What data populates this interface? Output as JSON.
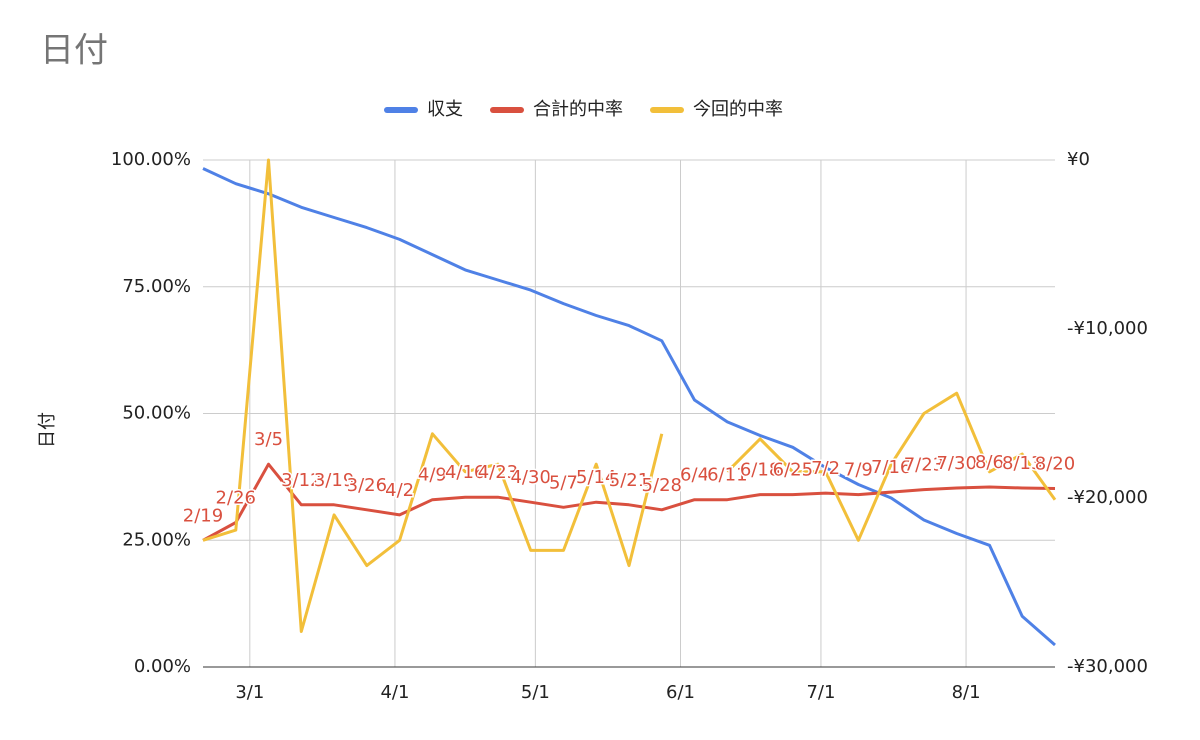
{
  "chart_data": {
    "type": "line",
    "title": "日付",
    "y_label": "日付",
    "x": [
      "2/19",
      "2/26",
      "3/5",
      "3/12",
      "3/19",
      "3/26",
      "4/2",
      "4/9",
      "4/16",
      "4/23",
      "4/30",
      "5/7",
      "5/14",
      "5/21",
      "5/28",
      "6/4",
      "6/11",
      "6/18",
      "6/25",
      "7/2",
      "7/9",
      "7/16",
      "7/23",
      "7/30",
      "8/6",
      "8/13",
      "8/20"
    ],
    "xlim": [
      "2/19",
      "8/20"
    ],
    "xticks": [
      "3/1",
      "4/1",
      "5/1",
      "6/1",
      "7/1",
      "8/1"
    ],
    "ylim": [
      0,
      100
    ],
    "yticks": [
      {
        "value": 0,
        "label": "0.00%"
      },
      {
        "value": 25,
        "label": "25.00%"
      },
      {
        "value": 50,
        "label": "50.00%"
      },
      {
        "value": 75,
        "label": "75.00%"
      },
      {
        "value": 100,
        "label": "100.00%"
      }
    ],
    "y2lim": [
      -30000,
      0
    ],
    "y2ticks": [
      {
        "value": 0,
        "label": "¥0"
      },
      {
        "value": -10000,
        "label": "-¥10,000"
      },
      {
        "value": -20000,
        "label": "-¥20,000"
      },
      {
        "value": -30000,
        "label": "-¥30,000"
      }
    ],
    "grid": true,
    "legend": "top",
    "point_labels_series": 1,
    "series": [
      {
        "name": "収支",
        "color": "#4f81e6",
        "axis": "y2",
        "values": [
          -500,
          -1400,
          -2000,
          -2800,
          -3400,
          -4000,
          -4700,
          -5600,
          -6500,
          -7100,
          -7700,
          -8500,
          -9200,
          -9800,
          -10700,
          -14200,
          -15500,
          -16300,
          -17000,
          -18200,
          -19200,
          -20000,
          -21300,
          -22100,
          -22800,
          -27000,
          -28700
        ]
      },
      {
        "name": "合計的中率",
        "color": "#d9503f",
        "values": [
          25,
          28.5,
          40,
          32,
          32,
          31,
          30,
          33,
          33.5,
          33.5,
          32.5,
          31.5,
          32.5,
          32,
          31,
          33,
          33,
          34,
          34,
          34.3,
          34,
          34.5,
          35,
          35.3,
          35.5,
          35.3,
          35.2
        ]
      },
      {
        "name": "今回的中率",
        "color": "#f2bf3a",
        "values": [
          25,
          27,
          100,
          7,
          30,
          20,
          25,
          46,
          38.5,
          40,
          23,
          23,
          40,
          20,
          46,
          null,
          38.5,
          45,
          38.5,
          38.5,
          25,
          40,
          50,
          54,
          38.5,
          42,
          33
        ]
      }
    ]
  }
}
